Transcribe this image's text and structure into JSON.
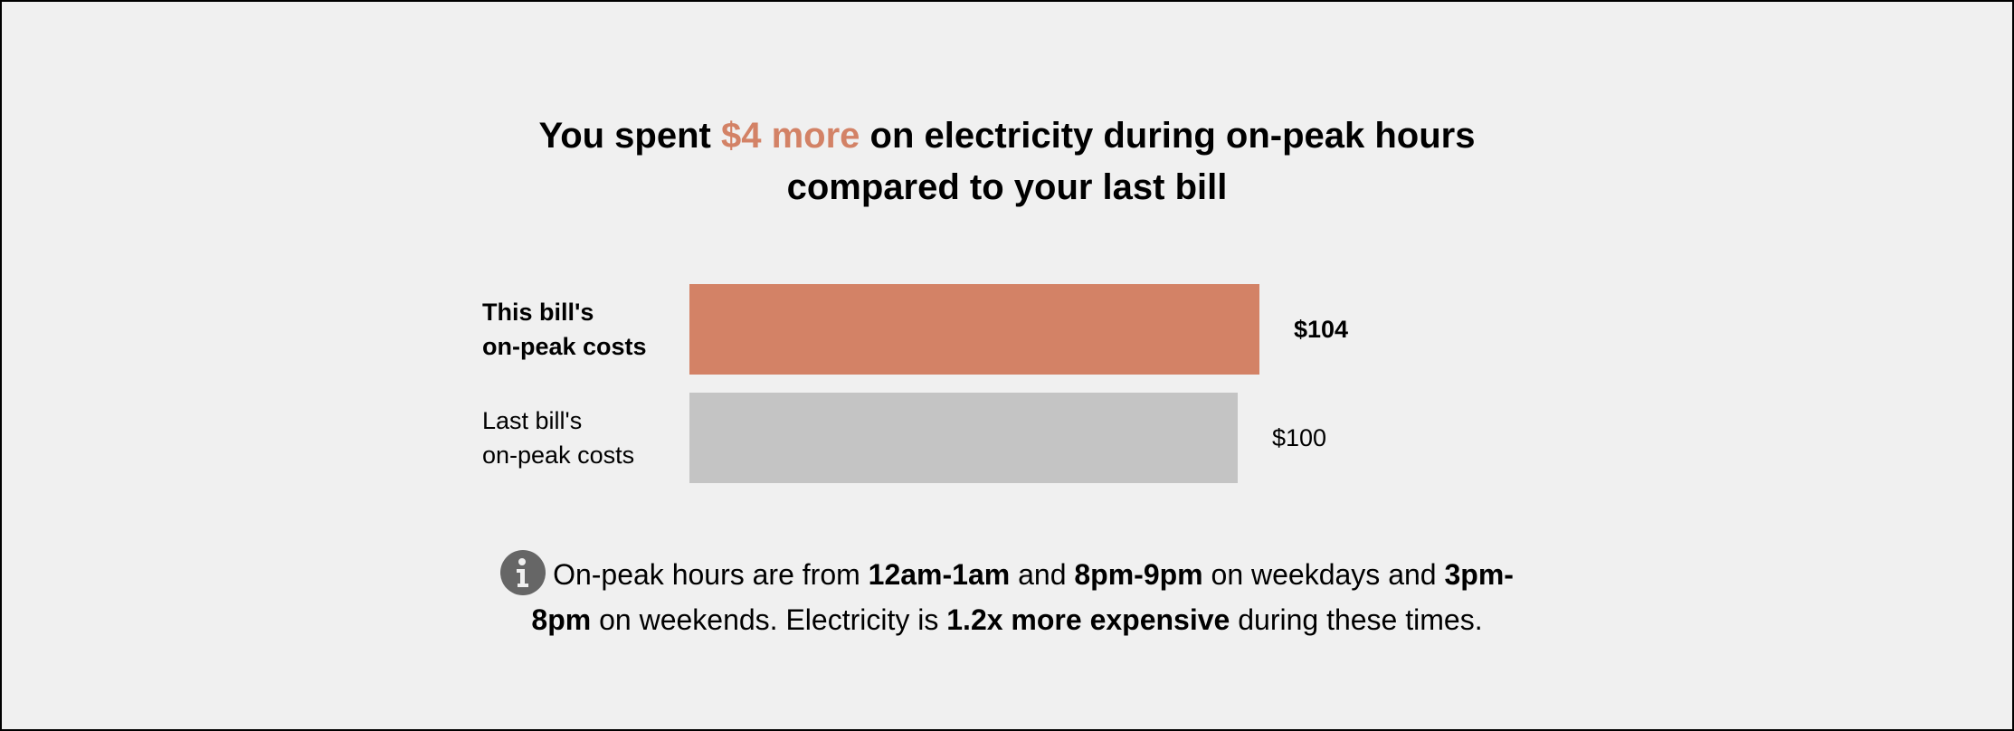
{
  "headline": {
    "part1": "You spent ",
    "highlight": "$4 more",
    "part2": " on electricity during on-peak hours",
    "line2": "compared to your last bill"
  },
  "chart_data": {
    "type": "bar",
    "orientation": "horizontal",
    "categories": [
      "This bill's on-peak costs",
      "Last bill's on-peak costs"
    ],
    "values": [
      104,
      100
    ],
    "value_labels": [
      "$104",
      "$100"
    ],
    "rows": [
      {
        "label_line1": "This bill's",
        "label_line2": "on-peak costs",
        "value": 104,
        "value_label": "$104",
        "color": "#d38266",
        "emphasis": true
      },
      {
        "label_line1": "Last bill's",
        "label_line2": "on-peak costs",
        "value": 100,
        "value_label": "$100",
        "color": "#c4c4c4",
        "emphasis": false
      }
    ],
    "title": "",
    "xlabel": "",
    "ylabel": "",
    "grid": false,
    "legend": "none"
  },
  "note": {
    "icon": "info-icon",
    "t1": "On-peak hours are from ",
    "b1": "12am-1am",
    "t2": " and ",
    "b2": "8pm-9pm",
    "t3": " on weekdays and ",
    "b3": "3pm-",
    "b4": "8pm",
    "t4": " on weekends. Electricity is ",
    "b5": "1.2x more expensive",
    "t5": " during these times."
  },
  "colors": {
    "accent": "#d38266",
    "previous": "#c4c4c4",
    "background": "#f0f0f0",
    "icon": "#666666"
  }
}
